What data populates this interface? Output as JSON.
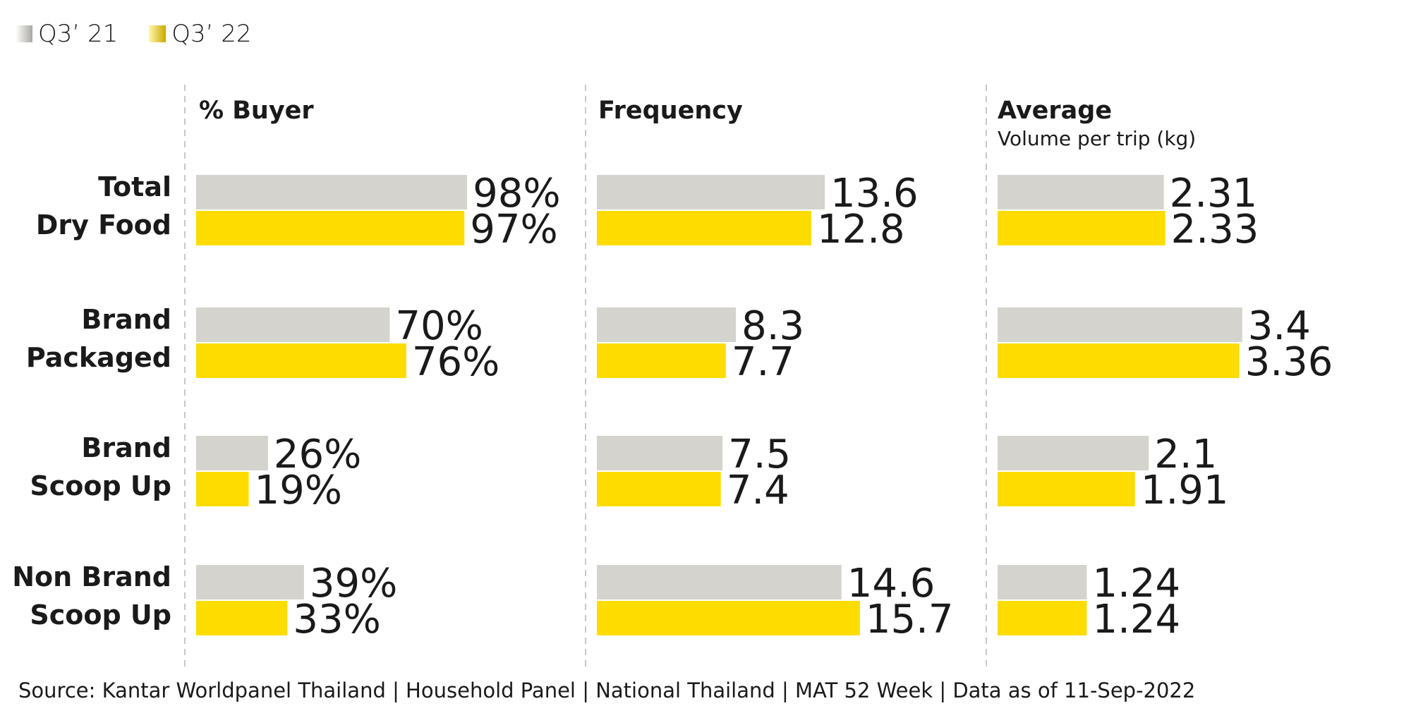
{
  "legend": [
    {
      "label": "Q3’ 21",
      "color": "#d4d3cd"
    },
    {
      "label": "Q3’ 22",
      "color": "#ffdc00"
    }
  ],
  "source": "Source: Kantar Worldpanel Thailand | Household Panel | National Thailand | MAT 52 Week | Data as of 11-Sep-2022",
  "chart_data": [
    {
      "type": "bar",
      "orientation": "horizontal",
      "title": "% Buyer",
      "subtitle": "",
      "categories": [
        [
          "Total",
          "Dry Food"
        ],
        [
          "Brand",
          "Packaged"
        ],
        [
          "Brand",
          "Scoop Up"
        ],
        [
          "Non Brand",
          "Scoop Up"
        ]
      ],
      "series": [
        {
          "name": "Q3’ 21",
          "values": [
            98,
            70,
            26,
            39
          ],
          "labels": [
            "98%",
            "70%",
            "26%",
            "39%"
          ]
        },
        {
          "name": "Q3’ 22",
          "values": [
            97,
            76,
            19,
            33
          ],
          "labels": [
            "97%",
            "76%",
            "19%",
            "33%"
          ]
        }
      ]
    },
    {
      "type": "bar",
      "orientation": "horizontal",
      "title": "Frequency",
      "subtitle": "",
      "categories": [
        [
          "Total",
          "Dry Food"
        ],
        [
          "Brand",
          "Packaged"
        ],
        [
          "Brand",
          "Scoop Up"
        ],
        [
          "Non Brand",
          "Scoop Up"
        ]
      ],
      "series": [
        {
          "name": "Q3’ 21",
          "values": [
            13.6,
            8.3,
            7.5,
            14.6
          ],
          "labels": [
            "13.6",
            "8.3",
            "7.5",
            "14.6"
          ]
        },
        {
          "name": "Q3’ 22",
          "values": [
            12.8,
            7.7,
            7.4,
            15.7
          ],
          "labels": [
            "12.8",
            "7.7",
            "7.4",
            "15.7"
          ]
        }
      ]
    },
    {
      "type": "bar",
      "orientation": "horizontal",
      "title": "Average",
      "subtitle": "Volume per trip (kg)",
      "categories": [
        [
          "Total",
          "Dry Food"
        ],
        [
          "Brand",
          "Packaged"
        ],
        [
          "Brand",
          "Scoop Up"
        ],
        [
          "Non Brand",
          "Scoop Up"
        ]
      ],
      "series": [
        {
          "name": "Q3’ 21",
          "values": [
            2.31,
            3.4,
            2.1,
            1.24
          ],
          "labels": [
            "2.31",
            "3.4",
            "2.1",
            "1.24"
          ]
        },
        {
          "name": "Q3’ 22",
          "values": [
            2.33,
            3.36,
            1.91,
            1.24
          ],
          "labels": [
            "2.33",
            "3.36",
            "1.91",
            "1.24"
          ]
        }
      ]
    }
  ]
}
